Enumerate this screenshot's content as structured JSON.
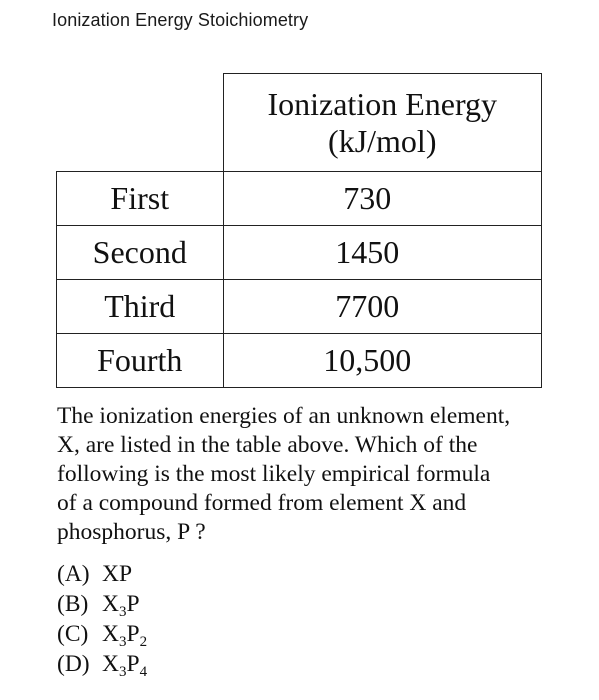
{
  "page": {
    "title": "Ionization Energy Stoichiometry"
  },
  "table": {
    "header_line1": "Ionization Energy",
    "header_line2": "(kJ/mol)",
    "rows": [
      {
        "label": "First",
        "value": "730"
      },
      {
        "label": "Second",
        "value": "1450"
      },
      {
        "label": "Third",
        "value": "7700"
      },
      {
        "label": "Fourth",
        "value": "10,500"
      }
    ]
  },
  "question": {
    "lines": [
      "The ionization energies of an unknown element,",
      "X, are listed in the table above. Which of the",
      "following is the most likely empirical formula",
      "of a compound formed from element X and",
      "phosphorus, P ?"
    ]
  },
  "options": [
    {
      "letter": "(A)",
      "x": "X",
      "x_sub": "",
      "p": "P",
      "p_sub": ""
    },
    {
      "letter": "(B)",
      "x": "X",
      "x_sub": "3",
      "p": "P",
      "p_sub": ""
    },
    {
      "letter": "(C)",
      "x": "X",
      "x_sub": "3",
      "p": "P",
      "p_sub": "2"
    },
    {
      "letter": "(D)",
      "x": "X",
      "x_sub": "3",
      "p": "P",
      "p_sub": "4"
    }
  ]
}
